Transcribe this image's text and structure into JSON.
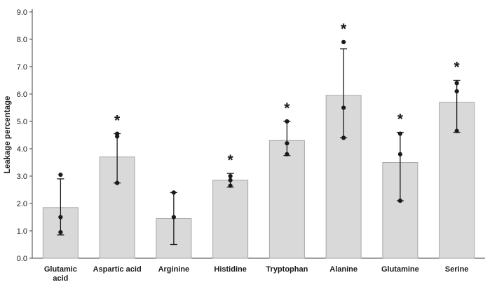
{
  "chart_data": {
    "type": "bar",
    "title": "",
    "xlabel": "",
    "ylabel": "Leakage percentage",
    "ylim": [
      0,
      9
    ],
    "ytick_step": 1,
    "ytick_labels": [
      "0.0",
      "1.0",
      "2.0",
      "3.0",
      "4.0",
      "5.0",
      "6.0",
      "7.0",
      "8.0",
      "9.0"
    ],
    "categories": [
      "Glutamic acid",
      "Aspartic acid",
      "Arginine",
      "Histidine",
      "Tryptophan",
      "Alanine",
      "Glutamine",
      "Serine"
    ],
    "label_lines": [
      [
        "Glutamic",
        "acid"
      ],
      [
        "Aspartic acid"
      ],
      [
        "Arginine"
      ],
      [
        "Histidine"
      ],
      [
        "Tryptophan"
      ],
      [
        "Alanine"
      ],
      [
        "Glutamine"
      ],
      [
        "Serine"
      ]
    ],
    "values": [
      1.85,
      3.7,
      1.45,
      2.85,
      4.3,
      5.95,
      3.5,
      5.7
    ],
    "error_low": [
      0.85,
      2.75,
      0.5,
      2.6,
      3.75,
      4.4,
      2.1,
      4.6
    ],
    "error_high": [
      2.9,
      4.55,
      2.4,
      3.1,
      5.0,
      7.65,
      4.6,
      6.5
    ],
    "points": [
      [
        3.05,
        1.5,
        0.95
      ],
      [
        4.55,
        4.45,
        2.75
      ],
      [
        2.4,
        1.5
      ],
      [
        3.0,
        2.85,
        2.65
      ],
      [
        5.0,
        4.2,
        3.8
      ],
      [
        7.9,
        5.5,
        4.4
      ],
      [
        4.55,
        3.8,
        2.1
      ],
      [
        6.4,
        6.1,
        4.65
      ]
    ],
    "significant": [
      false,
      true,
      false,
      true,
      true,
      true,
      true,
      true
    ],
    "significance_marker": "*",
    "bar_color": "#d9d9d9",
    "bar_border": "#a6a6a6",
    "axis_color": "#404040",
    "marker_color": "#1a1a1a",
    "grid": false,
    "legend_position": "none"
  }
}
